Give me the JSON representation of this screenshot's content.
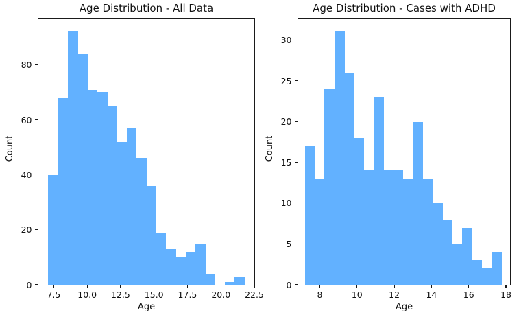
{
  "figure": {
    "background_color": "#ffffff",
    "text_color": "#111111",
    "spine_color": "#1a1a1a"
  },
  "chart_data": [
    {
      "type": "bar",
      "subtype": "histogram",
      "title": "Age Distribution - All Data",
      "xlabel": "Age",
      "ylabel": "Count",
      "bar_color": "#62B1FF",
      "grid": false,
      "legend": null,
      "bin_start": 7.08,
      "bin_width": 0.7335,
      "counts": [
        40,
        68,
        92,
        84,
        71,
        70,
        65,
        52,
        57,
        46,
        36,
        19,
        13,
        10,
        12,
        15,
        4,
        0,
        1,
        3
      ],
      "xlim": [
        6.35,
        22.5
      ],
      "ylim": [
        0,
        96.6
      ],
      "xticks": {
        "values": [
          7.5,
          10.0,
          12.5,
          15.0,
          17.5,
          20.0,
          22.5
        ],
        "labels": [
          "7.5",
          "10.0",
          "12.5",
          "15.0",
          "17.5",
          "20.0",
          "22.5"
        ]
      },
      "yticks": {
        "values": [
          0,
          20,
          40,
          60,
          80
        ],
        "labels": [
          "0",
          "20",
          "40",
          "60",
          "80"
        ]
      }
    },
    {
      "type": "bar",
      "subtype": "histogram",
      "title": "Age Distribution - Cases with ADHD",
      "xlabel": "Age",
      "ylabel": "Count",
      "bar_color": "#62B1FF",
      "grid": false,
      "legend": null,
      "bin_start": 7.2,
      "bin_width": 0.5275,
      "counts": [
        17,
        13,
        24,
        31,
        26,
        18,
        14,
        23,
        14,
        14,
        13,
        20,
        13,
        10,
        8,
        5,
        7,
        3,
        2,
        4
      ],
      "xlim": [
        6.84,
        18.22
      ],
      "ylim": [
        0,
        32.55
      ],
      "xticks": {
        "values": [
          8,
          10,
          12,
          14,
          16,
          18
        ],
        "labels": [
          "8",
          "10",
          "12",
          "14",
          "16",
          "18"
        ]
      },
      "yticks": {
        "values": [
          0,
          5,
          10,
          15,
          20,
          25,
          30
        ],
        "labels": [
          "0",
          "5",
          "10",
          "15",
          "20",
          "25",
          "30"
        ]
      }
    }
  ]
}
